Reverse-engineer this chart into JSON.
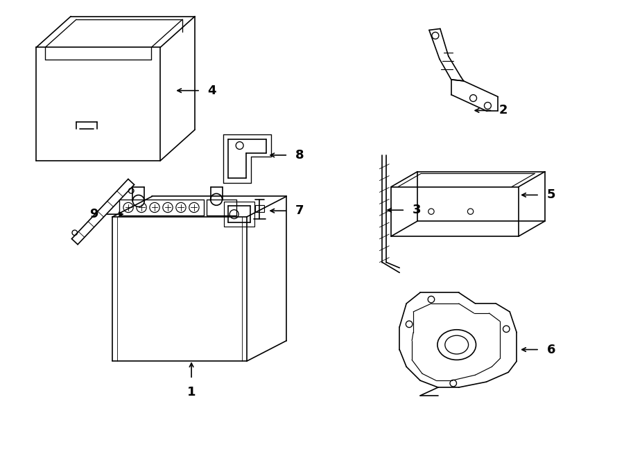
{
  "bg_color": "#ffffff",
  "line_color": "#000000",
  "lw": 1.2,
  "fig_width": 9.0,
  "fig_height": 6.61,
  "dpi": 100
}
